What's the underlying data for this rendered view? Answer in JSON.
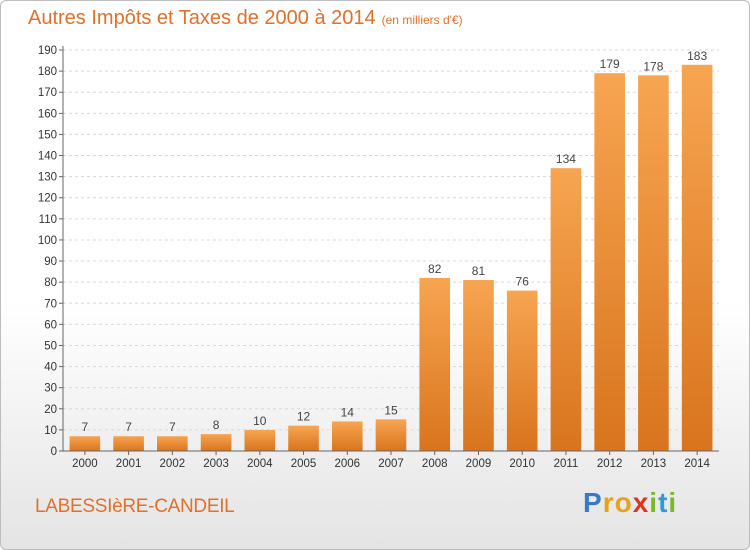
{
  "header": {
    "title": "Autres Impôts et Taxes de 2000 à 2014",
    "unit": "(en milliers d'€)"
  },
  "footer": {
    "commune": "LABESSIèRE-CANDEIL",
    "logo": {
      "letters": [
        "P",
        "r",
        "o",
        "x",
        "i",
        "t",
        "i"
      ],
      "colors": [
        "#3a78c9",
        "#e8a21a",
        "#e8a21a",
        "#d9371e",
        "#7ab828",
        "#2f9ad8",
        "#7ab828"
      ]
    }
  },
  "colors": {
    "bar_light": "#f7a551",
    "bar_dark": "#d9741e",
    "accent": "#e0702a"
  },
  "chart_data": {
    "type": "bar",
    "title": "Autres Impôts et Taxes de 2000 à 2014",
    "subtitle": "(en milliers d'€)",
    "categories": [
      "2000",
      "2001",
      "2002",
      "2003",
      "2004",
      "2005",
      "2006",
      "2007",
      "2008",
      "2009",
      "2010",
      "2011",
      "2012",
      "2013",
      "2014"
    ],
    "values": [
      7,
      7,
      7,
      8,
      10,
      12,
      14,
      15,
      82,
      81,
      76,
      134,
      179,
      178,
      183
    ],
    "xlabel": "",
    "ylabel": "",
    "ylim": [
      0,
      190
    ],
    "yticks": [
      0,
      10,
      20,
      30,
      40,
      50,
      60,
      70,
      80,
      90,
      100,
      110,
      120,
      130,
      140,
      150,
      160,
      170,
      180,
      190
    ],
    "grid": true,
    "legend": "none"
  }
}
